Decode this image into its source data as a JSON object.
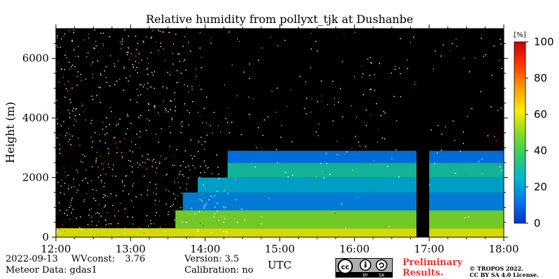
{
  "chart_data": {
    "type": "heatmap",
    "title": "Relative humidity from pollyxt_tjk at Dushanbe",
    "xlabel": "UTC",
    "ylabel": "Height (m)",
    "x_ticks": [
      "12:00",
      "13:00",
      "14:00",
      "15:00",
      "16:00",
      "17:00",
      "18:00"
    ],
    "x_range_hours": [
      12,
      18
    ],
    "y_ticks": [
      0,
      2000,
      4000,
      6000
    ],
    "ylim": [
      0,
      7000
    ],
    "colorbar": {
      "label": "[%]",
      "ticks": [
        0,
        20,
        40,
        60,
        80,
        100
      ],
      "range": [
        0,
        100
      ],
      "colors": [
        "#0033cc",
        "#0077ee",
        "#00bbcc",
        "#33cc66",
        "#88dd22",
        "#ffee00",
        "#ff9900",
        "#ff3300",
        "#cc0000"
      ]
    },
    "no_data_gap_hours": [
      16.83,
      17.0
    ],
    "layers": [
      {
        "from_hour": 12,
        "to_hour": 18,
        "height_m": [
          0,
          300
        ],
        "rh_percent": 60
      },
      {
        "from_hour": 13.6,
        "to_hour": 18,
        "height_m": [
          300,
          900
        ],
        "rh_percent": 48
      },
      {
        "from_hour": 13.7,
        "to_hour": 18,
        "height_m": [
          900,
          1500
        ],
        "rh_percent": 15
      },
      {
        "from_hour": 13.9,
        "to_hour": 18,
        "height_m": [
          1500,
          2000
        ],
        "rh_percent": 22
      },
      {
        "from_hour": 14.3,
        "to_hour": 18,
        "height_m": [
          2000,
          2500
        ],
        "rh_percent": 30
      },
      {
        "from_hour": 14.3,
        "to_hour": 18,
        "height_m": [
          2500,
          2900
        ],
        "rh_percent": 12
      }
    ],
    "noise_region": {
      "description_from_hour": 12,
      "to_hour": 14.4,
      "rh_percent": 100
    }
  },
  "footer": {
    "date": "2022-09-13",
    "wvconst_label": "WVconst:",
    "wvconst_value": "3.76",
    "version": "Version: 3.5",
    "meteor": "Meteor Data: gdas1",
    "calibration": "Calibration: no",
    "preliminary_line1": "Preliminary",
    "preliminary_line2": "Results.",
    "copyright_line1": "© TROPOS 2022.",
    "copyright_line2": "CC BY SA 4.0 License.",
    "cc_badge_by": "BY",
    "cc_badge_sa": "SA"
  }
}
